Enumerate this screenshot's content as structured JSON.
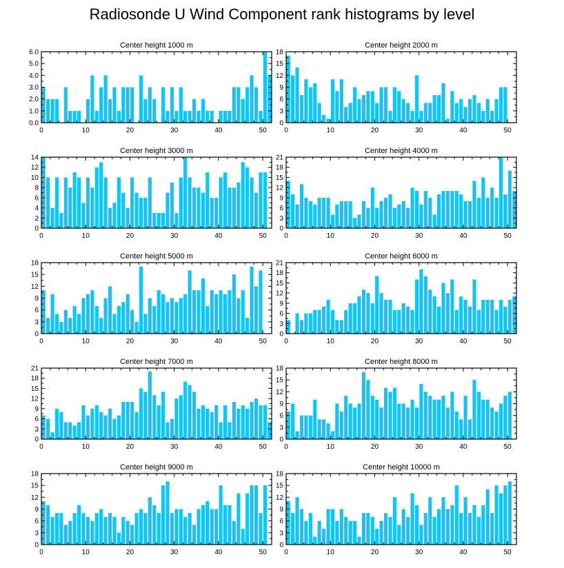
{
  "title": "Radiosonde U Wind Component rank histograms by level",
  "colors": {
    "bar": "#16c4f4",
    "axis": "#000000",
    "background": "#ffffff"
  },
  "chart_data": [
    {
      "type": "bar",
      "title": "Center height 1000 m",
      "xlabel": "",
      "ylabel": "",
      "xlim": [
        0,
        52
      ],
      "ylim": [
        0,
        6
      ],
      "xticks": [
        0,
        10,
        20,
        30,
        40,
        50
      ],
      "yticks": [
        0,
        1,
        2,
        3,
        4,
        5,
        6
      ],
      "ytick_labels": [
        "0.0",
        "1.0",
        "2.0",
        "3.0",
        "4.0",
        "5.0",
        "6.0"
      ],
      "values": [
        3,
        2,
        2,
        2,
        0,
        3,
        1,
        1,
        1,
        0,
        2,
        4,
        1,
        3,
        4,
        2,
        3,
        1,
        3,
        3,
        3,
        0,
        4,
        2,
        3,
        2,
        0,
        3,
        1,
        3,
        1,
        3,
        1,
        1,
        2,
        1,
        2,
        1,
        1,
        0,
        1,
        1,
        1,
        3,
        3,
        2,
        3,
        4,
        3,
        1,
        6,
        4
      ]
    },
    {
      "type": "bar",
      "title": "Center height 2000 m",
      "xlabel": "",
      "ylabel": "",
      "xlim": [
        0,
        52
      ],
      "ylim": [
        0,
        18
      ],
      "xticks": [
        0,
        10,
        20,
        30,
        40,
        50
      ],
      "yticks": [
        0,
        3,
        6,
        9,
        12,
        15,
        18
      ],
      "ytick_labels": [
        "0",
        "3",
        "6",
        "9",
        "12",
        "15",
        "18"
      ],
      "values": [
        17,
        12,
        14,
        7,
        11,
        9,
        10,
        5,
        2,
        1,
        11,
        8,
        11,
        4,
        5,
        9,
        6,
        7,
        8,
        8,
        5,
        9,
        9,
        3,
        9,
        8,
        6,
        5,
        3,
        12,
        3,
        5,
        5,
        7,
        7,
        10,
        1,
        8,
        5,
        6,
        4,
        6,
        7,
        5,
        3,
        6,
        3,
        6,
        9,
        9
      ]
    },
    {
      "type": "bar",
      "title": "Center height 3000 m",
      "xlabel": "",
      "ylabel": "",
      "xlim": [
        0,
        52
      ],
      "ylim": [
        0,
        14
      ],
      "xticks": [
        0,
        10,
        20,
        30,
        40,
        50
      ],
      "yticks": [
        0,
        2,
        4,
        6,
        8,
        10,
        12,
        14
      ],
      "ytick_labels": [
        "0",
        "2",
        "4",
        "6",
        "8",
        "10",
        "12",
        "14"
      ],
      "values": [
        14,
        10,
        4,
        10,
        3,
        10,
        8,
        11,
        10,
        5,
        10,
        8,
        12,
        13,
        10,
        4,
        5,
        10,
        7,
        4,
        10,
        7,
        6,
        6,
        10,
        3,
        3,
        3,
        7,
        9,
        3,
        10,
        14,
        10,
        8,
        8,
        7,
        11,
        6,
        6,
        10,
        11,
        8,
        8,
        9,
        13,
        12,
        10,
        7,
        11,
        11
      ]
    },
    {
      "type": "bar",
      "title": "Center height 4000 m",
      "xlabel": "",
      "ylabel": "",
      "xlim": [
        0,
        52
      ],
      "ylim": [
        0,
        21
      ],
      "xticks": [
        0,
        10,
        20,
        30,
        40,
        50
      ],
      "yticks": [
        0,
        3,
        6,
        9,
        12,
        15,
        18,
        21
      ],
      "ytick_labels": [
        "0",
        "3",
        "6",
        "9",
        "12",
        "15",
        "18",
        "21"
      ],
      "values": [
        14,
        10,
        7,
        13,
        9,
        8,
        7,
        9,
        9,
        9,
        4,
        7,
        8,
        8,
        8,
        3,
        4,
        8,
        6,
        12,
        6,
        8,
        9,
        10,
        6,
        7,
        8,
        6,
        12,
        11,
        7,
        11,
        9,
        4,
        10,
        11,
        11,
        11,
        11,
        10,
        8,
        8,
        14,
        9,
        15,
        9,
        12,
        9,
        21,
        10,
        17,
        11
      ]
    },
    {
      "type": "bar",
      "title": "Center height 5000 m",
      "xlabel": "",
      "ylabel": "",
      "xlim": [
        0,
        52
      ],
      "ylim": [
        0,
        18
      ],
      "xticks": [
        0,
        10,
        20,
        30,
        40,
        50
      ],
      "yticks": [
        0,
        3,
        6,
        9,
        12,
        15,
        18
      ],
      "ytick_labels": [
        "0",
        "3",
        "6",
        "9",
        "12",
        "15",
        "18"
      ],
      "values": [
        11,
        4,
        10,
        5,
        3,
        6,
        4,
        7,
        5,
        9,
        10,
        11,
        7,
        4,
        9,
        12,
        5,
        7,
        8,
        10,
        6,
        3,
        17,
        5,
        9,
        7,
        11,
        10,
        8,
        9,
        8,
        9,
        10,
        16,
        11,
        11,
        14,
        7,
        11,
        10,
        11,
        10,
        11,
        15,
        9,
        11,
        4,
        17,
        12,
        16
      ]
    },
    {
      "type": "bar",
      "title": "Center height 6000 m",
      "xlabel": "",
      "ylabel": "",
      "xlim": [
        0,
        52
      ],
      "ylim": [
        0,
        21
      ],
      "xticks": [
        0,
        10,
        20,
        30,
        40,
        50
      ],
      "yticks": [
        0,
        3,
        6,
        9,
        12,
        15,
        18,
        21
      ],
      "ytick_labels": [
        "0",
        "3",
        "6",
        "9",
        "12",
        "15",
        "18",
        "21"
      ],
      "values": [
        4,
        0,
        6,
        4,
        6,
        6,
        7,
        7,
        8,
        10,
        7,
        4,
        4,
        7,
        9,
        9,
        11,
        13,
        12,
        9,
        17,
        12,
        10,
        10,
        7,
        7,
        9,
        8,
        7,
        16,
        19,
        17,
        13,
        11,
        8,
        15,
        12,
        16,
        7,
        11,
        10,
        8,
        16,
        7,
        10,
        10,
        10,
        7,
        10,
        8,
        10,
        11
      ]
    },
    {
      "type": "bar",
      "title": "Center height 7000 m",
      "xlabel": "",
      "ylabel": "",
      "xlim": [
        0,
        52
      ],
      "ylim": [
        0,
        21
      ],
      "xticks": [
        0,
        10,
        20,
        30,
        40,
        50
      ],
      "yticks": [
        0,
        3,
        6,
        9,
        12,
        15,
        18,
        21
      ],
      "ytick_labels": [
        "0",
        "3",
        "6",
        "9",
        "12",
        "15",
        "18",
        "21"
      ],
      "values": [
        7,
        6,
        2,
        9,
        8,
        5,
        5,
        4,
        5,
        10,
        7,
        9,
        10,
        8,
        7,
        9,
        6,
        7,
        11,
        11,
        11,
        8,
        15,
        14,
        20,
        13,
        10,
        14,
        5,
        6,
        12,
        13,
        17,
        16,
        14,
        9,
        10,
        9,
        8,
        10,
        5,
        10,
        5,
        11,
        9,
        10,
        9,
        11,
        12,
        10,
        10,
        5
      ]
    },
    {
      "type": "bar",
      "title": "Center height 8000 m",
      "xlabel": "",
      "ylabel": "",
      "xlim": [
        0,
        52
      ],
      "ylim": [
        0,
        18
      ],
      "xticks": [
        0,
        10,
        20,
        30,
        40,
        50
      ],
      "yticks": [
        0,
        3,
        6,
        9,
        12,
        15,
        18
      ],
      "ytick_labels": [
        "0",
        "3",
        "6",
        "9",
        "12",
        "15",
        "18"
      ],
      "values": [
        7,
        9,
        2,
        6,
        6,
        6,
        10,
        5,
        5,
        4,
        2,
        9,
        7,
        11,
        9,
        8,
        9,
        17,
        15,
        11,
        10,
        8,
        13,
        12,
        13,
        9,
        9,
        8,
        10,
        8,
        14,
        12,
        11,
        10,
        10,
        11,
        8,
        12,
        7,
        5,
        11,
        5,
        15,
        12,
        10,
        10,
        8,
        7,
        9,
        11,
        12
      ]
    },
    {
      "type": "bar",
      "title": "Center height 9000 m",
      "xlabel": "",
      "ylabel": "",
      "xlim": [
        0,
        52
      ],
      "ylim": [
        0,
        18
      ],
      "xticks": [
        0,
        10,
        20,
        30,
        40,
        50
      ],
      "yticks": [
        0,
        3,
        6,
        9,
        12,
        15,
        18
      ],
      "ytick_labels": [
        "0",
        "3",
        "6",
        "9",
        "12",
        "15",
        "18"
      ],
      "values": [
        11,
        10,
        7,
        8,
        8,
        5,
        6,
        8,
        10,
        8,
        7,
        6,
        8,
        9,
        7,
        8,
        7,
        3,
        7,
        6,
        5,
        8,
        9,
        8,
        12,
        10,
        8,
        15,
        16,
        8,
        9,
        9,
        7,
        8,
        5,
        9,
        10,
        11,
        9,
        9,
        15,
        10,
        10,
        6,
        13,
        4,
        13,
        15,
        15,
        8,
        15
      ]
    },
    {
      "type": "bar",
      "title": "Center height 10000 m",
      "xlabel": "",
      "ylabel": "",
      "xlim": [
        0,
        52
      ],
      "ylim": [
        0,
        18
      ],
      "xticks": [
        0,
        10,
        20,
        30,
        40,
        50
      ],
      "yticks": [
        0,
        3,
        6,
        9,
        12,
        15,
        18
      ],
      "ytick_labels": [
        "0",
        "3",
        "6",
        "9",
        "12",
        "15",
        "18"
      ],
      "values": [
        11,
        8,
        12,
        9,
        6,
        8,
        2,
        6,
        4,
        9,
        9,
        6,
        9,
        7,
        6,
        6,
        2,
        8,
        8,
        7,
        4,
        6,
        8,
        7,
        12,
        5,
        9,
        7,
        13,
        10,
        5,
        8,
        12,
        7,
        9,
        12,
        9,
        10,
        15,
        8,
        12,
        8,
        10,
        7,
        10,
        14,
        8,
        15,
        13,
        15,
        16
      ]
    }
  ]
}
